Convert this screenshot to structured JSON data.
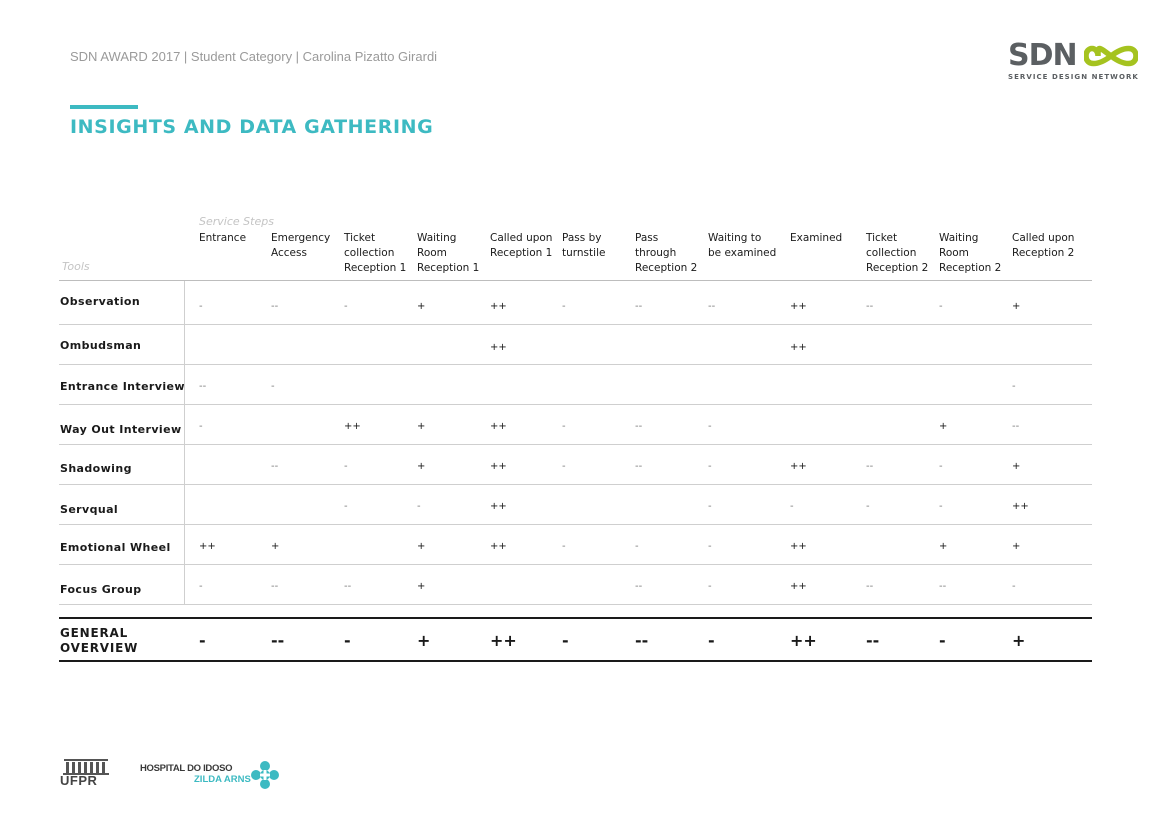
{
  "header": {
    "text": "SDN AWARD 2017 | Student Category | Carolina Pizatto Girardi"
  },
  "logo": {
    "word": "SDN",
    "subtitle": "SERVICE DESIGN NETWORK",
    "accent_color": "#a5c31f",
    "text_color": "#5b5f62"
  },
  "page": {
    "title": "INSIGHTS AND DATA GATHERING",
    "accent_color": "#3dbac2"
  },
  "table": {
    "steps_caption": "Service Steps",
    "tools_caption": "Tools",
    "columns": [
      [
        "Entrance"
      ],
      [
        "Emergency",
        "Access"
      ],
      [
        "Ticket",
        "collection",
        "Reception 1"
      ],
      [
        "Waiting",
        "Room",
        "Reception 1"
      ],
      [
        "Called upon",
        "Reception 1"
      ],
      [
        "Pass by",
        "turnstile"
      ],
      [
        "Pass",
        "through",
        "Reception 2"
      ],
      [
        "Waiting to",
        "be examined"
      ],
      [
        "Examined"
      ],
      [
        "Ticket",
        "collection",
        "Reception 2"
      ],
      [
        "Waiting",
        "Room",
        "Reception 2"
      ],
      [
        "Called upon",
        "Reception 2"
      ]
    ],
    "rows": [
      {
        "tool": "Observation",
        "values": [
          "-",
          "--",
          "-",
          "+",
          "++",
          "-",
          "--",
          "--",
          "++",
          "--",
          "-",
          "+"
        ]
      },
      {
        "tool": "Ombudsman",
        "values": [
          "",
          "",
          "",
          "",
          "++",
          "",
          "",
          "",
          "++",
          "",
          "",
          ""
        ]
      },
      {
        "tool": "Entrance Interview",
        "values": [
          "--",
          "-",
          "",
          "",
          "",
          "",
          "",
          "",
          "",
          "",
          "",
          "-"
        ]
      },
      {
        "tool": "Way Out Interview",
        "values": [
          "-",
          "",
          "++",
          "+",
          "++",
          "-",
          "--",
          "-",
          "",
          "",
          "+",
          "--"
        ]
      },
      {
        "tool": "Shadowing",
        "values": [
          "",
          "--",
          "-",
          "+",
          "++",
          "-",
          "--",
          "-",
          "++",
          "--",
          "-",
          "+"
        ]
      },
      {
        "tool": "Servqual",
        "values": [
          "",
          "",
          "-",
          "-",
          "++",
          "",
          "",
          "-",
          "-",
          "-",
          "-",
          "++"
        ]
      },
      {
        "tool": "Emotional Wheel",
        "values": [
          "++",
          "+",
          "",
          "+",
          "++",
          "-",
          "-",
          "-",
          "++",
          "",
          "+",
          "+"
        ]
      },
      {
        "tool": "Focus Group",
        "values": [
          "-",
          "--",
          "--",
          "+",
          "",
          "",
          "--",
          "-",
          "++",
          "--",
          "--",
          "-"
        ]
      }
    ],
    "overview": {
      "label_lines": [
        "GENERAL",
        "OVERVIEW"
      ],
      "values": [
        "-",
        "--",
        "-",
        "+",
        "++",
        "-",
        "--",
        "-",
        "++",
        "--",
        "-",
        "+"
      ]
    }
  },
  "footer": {
    "ufpr_label": "UFPR",
    "hospital_line1": "HOSPITAL DO IDOSO",
    "hospital_line2": "ZILDA ARNS"
  }
}
